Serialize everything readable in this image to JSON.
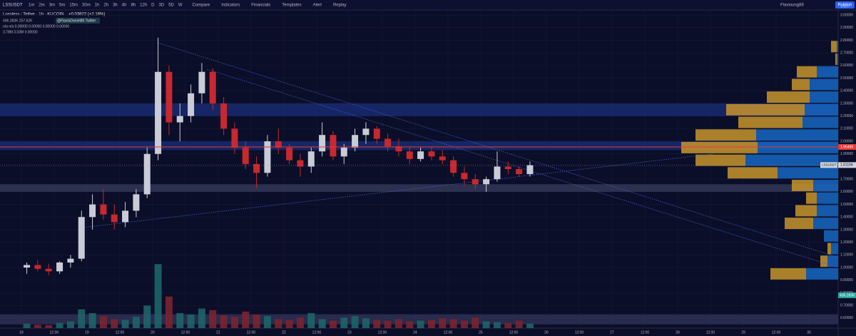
{
  "toolbar": {
    "symbol": "LSSUSDT",
    "intervals": [
      "1m",
      "2m",
      "3m",
      "5m",
      "15m",
      "30m",
      "1h",
      "2h",
      "3h",
      "4h",
      "8h",
      "12h",
      "D",
      "3D",
      "5D",
      "W"
    ],
    "buttons": [
      "Compare",
      "Indicators",
      "Financials",
      "Templates",
      "Alert",
      "Replay"
    ],
    "user": "Flavioung89",
    "publish": "Publish"
  },
  "chart_data": {
    "type": "candlestick",
    "title": "Lossless / Tether · 1h · KUCOIN",
    "change": "+0.03822 (+2.16%)",
    "legend_lines": [
      "436.283K 257.62K",
      "n/a n/a 0.00000 0.00000 0.00000 0.00000",
      "3.78M 3.03M 0.00000"
    ],
    "annotation": "@FlavioDaniel89 Twitter",
    "y_unit": "USDT",
    "x": [
      2,
      6,
      10,
      14,
      18,
      22,
      26,
      30,
      34,
      38,
      42,
      46,
      50,
      54,
      58,
      62,
      66,
      70,
      74,
      78,
      82,
      86,
      90,
      94,
      98,
      102,
      106,
      110,
      114,
      118,
      122,
      126,
      130,
      134,
      138,
      142,
      146,
      150,
      154,
      158,
      162,
      166,
      170,
      174,
      178,
      182,
      186
    ],
    "open": [
      1.0,
      1.02,
      0.99,
      0.97,
      1.04,
      1.07,
      1.4,
      1.5,
      1.42,
      1.36,
      1.45,
      1.58,
      1.9,
      2.55,
      2.15,
      2.2,
      2.38,
      2.55,
      2.3,
      2.1,
      1.95,
      1.82,
      1.75,
      2.0,
      1.95,
      1.85,
      1.8,
      1.92,
      2.05,
      1.88,
      1.95,
      2.05,
      2.1,
      2.02,
      1.96,
      1.92,
      1.86,
      1.92,
      1.88,
      1.85,
      1.75,
      1.7,
      1.66,
      1.7,
      1.8,
      1.78,
      1.74
    ],
    "high": [
      1.04,
      1.06,
      1.03,
      1.05,
      1.1,
      1.45,
      1.58,
      1.62,
      1.5,
      1.52,
      1.62,
      1.95,
      2.82,
      2.6,
      2.3,
      2.45,
      2.62,
      2.58,
      2.35,
      2.15,
      2.0,
      1.88,
      2.05,
      2.1,
      1.98,
      1.9,
      1.95,
      2.15,
      2.08,
      1.98,
      2.1,
      2.15,
      2.12,
      2.06,
      2.02,
      1.96,
      1.95,
      1.96,
      1.93,
      1.88,
      1.8,
      1.74,
      1.72,
      1.92,
      1.84,
      1.8,
      1.84
    ],
    "low": [
      0.95,
      0.97,
      0.94,
      0.95,
      1.0,
      1.05,
      1.3,
      1.38,
      1.3,
      1.32,
      1.4,
      1.55,
      1.85,
      2.05,
      2.0,
      2.15,
      2.3,
      2.25,
      2.05,
      1.9,
      1.78,
      1.63,
      1.72,
      1.9,
      1.82,
      1.72,
      1.75,
      1.88,
      1.85,
      1.82,
      1.92,
      1.98,
      1.98,
      1.92,
      1.88,
      1.82,
      1.84,
      1.85,
      1.82,
      1.72,
      1.65,
      1.62,
      1.6,
      1.68,
      1.74,
      1.72,
      1.72
    ],
    "close": [
      1.02,
      0.99,
      0.97,
      1.04,
      1.07,
      1.4,
      1.5,
      1.42,
      1.36,
      1.45,
      1.58,
      1.9,
      2.55,
      2.15,
      2.2,
      2.38,
      2.55,
      2.3,
      2.1,
      1.95,
      1.82,
      1.75,
      2.0,
      1.95,
      1.85,
      1.8,
      1.92,
      2.05,
      1.88,
      1.95,
      2.05,
      2.1,
      2.02,
      1.96,
      1.92,
      1.86,
      1.92,
      1.88,
      1.85,
      1.75,
      1.7,
      1.66,
      1.7,
      1.8,
      1.78,
      1.74,
      1.81
    ],
    "volume": [
      60,
      45,
      40,
      70,
      90,
      250,
      200,
      160,
      120,
      110,
      150,
      300,
      850,
      420,
      200,
      180,
      260,
      240,
      170,
      150,
      220,
      180,
      160,
      120,
      110,
      140,
      200,
      120,
      100,
      140,
      160,
      130,
      110,
      100,
      120,
      90,
      100,
      110,
      130,
      120,
      100,
      140,
      90,
      80,
      70,
      100,
      60
    ],
    "vlim": [
      0,
      900
    ],
    "up_color": "#c9ccd6",
    "down_color": "#c8282e",
    "vol_up_color": "#1d6468",
    "vol_down_color": "#7a2430",
    "xlim": [
      -7.8,
      298.7
    ],
    "xticks": [
      {
        "value": 0,
        "label": "18"
      },
      {
        "value": 12,
        "label": "12:00"
      },
      {
        "value": 24,
        "label": "19"
      },
      {
        "value": 36,
        "label": "12:00"
      },
      {
        "value": 48,
        "label": "20"
      },
      {
        "value": 60,
        "label": "12:00"
      },
      {
        "value": 72,
        "label": "21"
      },
      {
        "value": 84,
        "label": "12:00"
      },
      {
        "value": 96,
        "label": "22"
      },
      {
        "value": 108,
        "label": "12:00"
      },
      {
        "value": 120,
        "label": "23"
      },
      {
        "value": 132,
        "label": "12:00"
      },
      {
        "value": 144,
        "label": "24"
      },
      {
        "value": 156,
        "label": "12:00"
      },
      {
        "value": 168,
        "label": "25"
      },
      {
        "value": 180,
        "label": "12:00"
      },
      {
        "value": 192,
        "label": "26"
      },
      {
        "value": 204,
        "label": "12:00"
      },
      {
        "value": 216,
        "label": "27"
      },
      {
        "value": 228,
        "label": "12:00"
      },
      {
        "value": 240,
        "label": "28"
      },
      {
        "value": 252,
        "label": "12:00"
      },
      {
        "value": 264,
        "label": "29"
      },
      {
        "value": 276,
        "label": "12:00"
      },
      {
        "value": 288,
        "label": "30"
      }
    ],
    "ylim": [
      0.52,
      3.04
    ],
    "yticks": [
      {
        "value": 0.6,
        "label": "0.60000"
      },
      {
        "value": 0.7,
        "label": "0.70000"
      },
      {
        "value": 0.8,
        "label": "0.80000"
      },
      {
        "value": 0.9,
        "label": "0.90000"
      },
      {
        "value": 1.0,
        "label": "1.00000"
      },
      {
        "value": 1.1,
        "label": "1.10000"
      },
      {
        "value": 1.2,
        "label": "1.20000"
      },
      {
        "value": 1.3,
        "label": "1.30000"
      },
      {
        "value": 1.4,
        "label": "1.40000"
      },
      {
        "value": 1.5,
        "label": "1.50000"
      },
      {
        "value": 1.6,
        "label": "1.60000"
      },
      {
        "value": 1.7,
        "label": "1.70000"
      },
      {
        "value": 1.8,
        "label": "1.80000"
      },
      {
        "value": 1.9,
        "label": "1.90000"
      },
      {
        "value": 2.0,
        "label": "2.00000"
      },
      {
        "value": 2.1,
        "label": "2.10000"
      },
      {
        "value": 2.2,
        "label": "2.20000"
      },
      {
        "value": 2.3,
        "label": "2.30000"
      },
      {
        "value": 2.4,
        "label": "2.40000"
      },
      {
        "value": 2.5,
        "label": "2.50000"
      },
      {
        "value": 2.6,
        "label": "2.60000"
      },
      {
        "value": 2.7,
        "label": "2.70000"
      },
      {
        "value": 2.8,
        "label": "2.80000"
      },
      {
        "value": 2.9,
        "label": "2.90000"
      },
      {
        "value": 3.0,
        "label": "3.00000"
      }
    ],
    "grid": true,
    "level": 1.95499,
    "level_color": "#e53935",
    "last_price": 1.81184,
    "price_tag": "LSSUSDT",
    "last_volume": {
      "value": 436.283,
      "label": "436.283K"
    },
    "zones": [
      {
        "from": 2.2,
        "to": 2.3,
        "color": "#1b2f78"
      },
      {
        "from": 1.93,
        "to": 2.0,
        "color": "#1b2f78"
      },
      {
        "from": 1.6,
        "to": 1.66,
        "color": "#3a3d5e"
      },
      {
        "from": 0.55,
        "to": 0.63,
        "color": "#33365a"
      }
    ],
    "trendlines": [
      {
        "x": [
          50,
          298.7
        ],
        "y": [
          2.78,
          1.08
        ]
      },
      {
        "x": [
          68,
          298.7
        ],
        "y": [
          2.57,
          1.0
        ]
      },
      {
        "x": [
          23.5,
          253
        ],
        "y": [
          1.32,
          1.9
        ]
      }
    ],
    "volume_profile": {
      "prices": [
        2.75,
        2.65,
        2.55,
        2.45,
        2.35,
        2.25,
        2.15,
        2.05,
        1.95,
        1.85,
        1.75,
        1.65,
        1.55,
        1.45,
        1.35,
        1.25,
        1.15,
        1.05,
        0.95
      ],
      "up": [
        8,
        2,
        28,
        25,
        60,
        110,
        90,
        85,
        107,
        70,
        70,
        30,
        15,
        30,
        40,
        0,
        5,
        10,
        50
      ],
      "down": [
        2,
        2,
        30,
        40,
        40,
        47,
        50,
        115,
        113,
        130,
        85,
        35,
        30,
        30,
        35,
        20,
        10,
        15,
        45
      ],
      "xlim": [
        0,
        250
      ],
      "up_color": "#c8942a",
      "down_color": "#1666c1"
    }
  }
}
